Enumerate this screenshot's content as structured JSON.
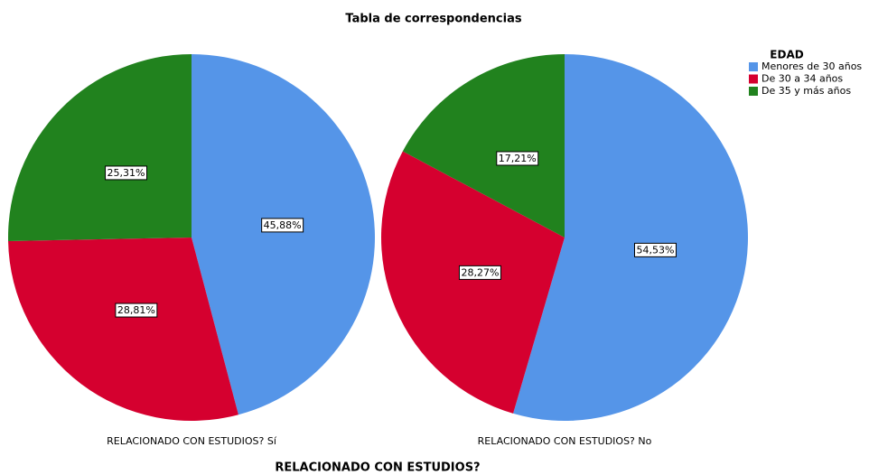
{
  "chart_data": {
    "type": "pie",
    "title": "Tabla de correspondencias",
    "xlabel": "RELACIONADO CON ESTUDIOS?",
    "legend_title": "EDAD",
    "legend": "upper right",
    "categories": [
      "RELACIONADO CON ESTUDIOS? Sí",
      "RELACIONADO CON ESTUDIOS? No"
    ],
    "series": [
      {
        "name": "Menores de 30 años",
        "color": "#5595e8",
        "values": [
          45.88,
          54.53
        ],
        "value_labels": [
          "45,88%",
          "54,53%"
        ]
      },
      {
        "name": "De 30 a 34 años",
        "color": "#d5002f",
        "values": [
          28.81,
          28.27
        ],
        "value_labels": [
          "28,81%",
          "28,27%"
        ]
      },
      {
        "name": "De 35 y más años",
        "color": "#21821e",
        "values": [
          25.31,
          17.21
        ],
        "value_labels": [
          "25,31%",
          "17,21%"
        ]
      }
    ]
  }
}
